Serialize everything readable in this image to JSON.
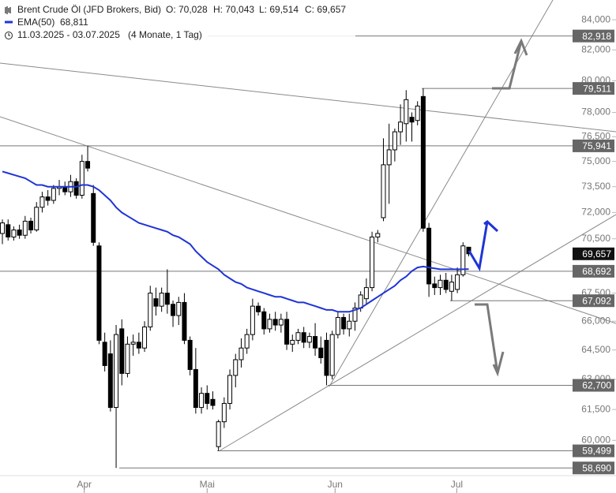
{
  "header": {
    "title": "Brent Crude Öl (JFD Brokers, Bid)",
    "ohlc": [
      "O: 70,028",
      "H: 70,043",
      "L: 69,514",
      "C: 69,657"
    ],
    "range": "11.03.2025 - 03.07.2025",
    "range_note": "(4 Monate, 1 Tag)"
  },
  "chart_data": {
    "type": "candlestick",
    "log_scale": true,
    "xlim": [
      -0.42,
      107.9
    ],
    "ylim": [
      58.33,
      85.34
    ],
    "xticks": [
      {
        "value": 14.4,
        "label": "Apr"
      },
      {
        "value": 36,
        "label": "Mai"
      },
      {
        "value": 58.5,
        "label": "Jun"
      },
      {
        "value": 79.9,
        "label": "Jul"
      }
    ],
    "yticks": [
      {
        "value": 84,
        "label": "84,000"
      },
      {
        "value": 82,
        "label": "82,000"
      },
      {
        "value": 80,
        "label": "80,000"
      },
      {
        "value": 78,
        "label": "78,000"
      },
      {
        "value": 76.5,
        "label": "76,500"
      },
      {
        "value": 75,
        "label": "75,000"
      },
      {
        "value": 73.5,
        "label": "73,500"
      },
      {
        "value": 72,
        "label": "72,000"
      },
      {
        "value": 70.5,
        "label": "70,500"
      },
      {
        "value": 67.5,
        "label": "67,500"
      },
      {
        "value": 66,
        "label": "66,000"
      },
      {
        "value": 64.5,
        "label": "64,500"
      },
      {
        "value": 63,
        "label": "63,000"
      },
      {
        "value": 61.5,
        "label": "61,500"
      },
      {
        "value": 60,
        "label": "60,000"
      }
    ],
    "up_color": "#ffffff",
    "down_color": "#000000",
    "open": [
      70.8,
      71.3,
      70.6,
      71.0,
      70.7,
      71.5,
      71.0,
      72.3,
      72.9,
      72.7,
      73.4,
      73.5,
      73.2,
      73.8,
      73.0,
      75.0,
      73.1,
      70.1,
      64.9,
      64.3,
      61.6,
      65.6,
      63.3,
      64.8,
      64.9,
      64.6,
      65.7,
      67.2,
      66.8,
      67.5,
      66.9,
      66.3,
      67.0,
      65.0,
      63.5,
      61.6,
      62.3,
      62.0,
      59.7,
      60.9,
      61.8,
      63.2,
      64.0,
      64.6,
      65.3,
      66.8,
      66.5,
      65.6,
      66.1,
      65.8,
      66.1,
      64.8,
      65.0,
      65.4,
      64.9,
      65.2,
      64.6,
      65.0,
      63.2,
      65.3,
      66.2,
      65.6,
      66.0,
      66.7,
      67.2,
      67.8,
      70.6,
      71.7,
      74.8,
      75.7,
      76.8,
      77.3,
      77.7,
      77.5,
      79.0,
      71.1,
      68.0,
      67.8,
      68.2,
      67.6,
      67.7,
      68.5,
      70.028
    ],
    "high": [
      71.6,
      71.6,
      71.2,
      71.3,
      71.8,
      71.7,
      72.6,
      73.2,
      73.3,
      73.6,
      73.9,
      73.8,
      74.2,
      74.0,
      75.4,
      75.941,
      73.6,
      70.3,
      65.4,
      65.0,
      65.8,
      66.1,
      65.2,
      65.3,
      65.4,
      66.0,
      67.9,
      67.8,
      67.8,
      68.8,
      67.1,
      67.3,
      67.5,
      65.2,
      64.6,
      62.6,
      62.7,
      62.4,
      61.0,
      62.1,
      63.5,
      64.3,
      65.1,
      65.6,
      67.2,
      67.0,
      66.7,
      66.4,
      66.5,
      66.4,
      66.5,
      65.3,
      65.6,
      65.7,
      65.4,
      65.9,
      65.2,
      65.4,
      65.5,
      66.5,
      66.4,
      66.4,
      67.0,
      67.6,
      68.3,
      70.9,
      71.0,
      76.4,
      77.3,
      77.0,
      78.5,
      79.4,
      78.0,
      78.7,
      79.511,
      71.4,
      68.4,
      68.5,
      68.6,
      68.5,
      68.9,
      70.3,
      70.043
    ],
    "low": [
      70.2,
      70.4,
      70.4,
      70.5,
      70.5,
      70.8,
      70.9,
      72.0,
      72.4,
      72.5,
      73.0,
      73.0,
      72.9,
      72.8,
      72.8,
      74.4,
      70.1,
      64.8,
      63.4,
      61.4,
      58.69,
      62.7,
      63.1,
      64.2,
      64.3,
      64.4,
      65.5,
      66.3,
      66.5,
      66.4,
      65.7,
      65.8,
      64.8,
      63.2,
      61.3,
      61.3,
      61.5,
      61.5,
      59.499,
      60.6,
      61.5,
      62.6,
      63.6,
      64.3,
      65.0,
      66.3,
      65.3,
      65.4,
      65.5,
      65.4,
      64.5,
      64.4,
      64.8,
      64.6,
      64.6,
      64.2,
      63.8,
      62.7,
      63.0,
      65.1,
      65.3,
      65.2,
      65.5,
      66.5,
      66.9,
      67.6,
      70.3,
      71.5,
      72.5,
      75.0,
      76.0,
      76.2,
      76.2,
      77.2,
      70.9,
      67.3,
      67.4,
      67.4,
      67.5,
      67.092,
      67.5,
      68.4,
      69.514
    ],
    "close": [
      71.4,
      70.6,
      71.0,
      70.7,
      71.5,
      71.0,
      72.3,
      72.9,
      72.7,
      73.4,
      73.5,
      73.2,
      73.8,
      73.0,
      75.0,
      74.6,
      70.3,
      65.0,
      63.7,
      61.6,
      65.3,
      63.3,
      64.8,
      64.9,
      64.6,
      65.7,
      67.5,
      66.8,
      67.5,
      66.9,
      66.3,
      67.0,
      65.0,
      63.5,
      61.6,
      62.3,
      61.8,
      61.7,
      60.9,
      61.8,
      63.2,
      64.0,
      64.6,
      65.3,
      66.8,
      66.5,
      65.6,
      66.1,
      65.8,
      66.1,
      64.8,
      65.0,
      65.4,
      64.9,
      65.2,
      64.6,
      64.1,
      63.2,
      65.3,
      66.2,
      65.6,
      66.0,
      66.7,
      67.4,
      67.8,
      70.6,
      70.8,
      74.8,
      75.7,
      76.8,
      77.4,
      78.8,
      77.4,
      78.4,
      71.1,
      68.0,
      67.8,
      68.2,
      67.7,
      68.1,
      68.5,
      70.1,
      69.657
    ],
    "ema": {
      "name": "EMA(50)",
      "value_label": "68,811",
      "color": "#1f34d6",
      "values": [
        74.4,
        74.3,
        74.2,
        74.1,
        74.0,
        73.8,
        73.6,
        73.6,
        73.5,
        73.5,
        73.5,
        73.5,
        73.5,
        73.5,
        73.6,
        73.6,
        73.5,
        73.3,
        73.0,
        72.7,
        72.3,
        72.0,
        71.8,
        71.6,
        71.4,
        71.3,
        71.2,
        71.1,
        71.0,
        70.9,
        70.7,
        70.6,
        70.4,
        70.2,
        69.8,
        69.5,
        69.2,
        69.0,
        68.8,
        68.5,
        68.3,
        68.1,
        68.0,
        67.8,
        67.7,
        67.6,
        67.5,
        67.4,
        67.3,
        67.3,
        67.2,
        67.1,
        67.0,
        67.0,
        66.9,
        66.8,
        66.7,
        66.6,
        66.6,
        66.5,
        66.5,
        66.5,
        66.6,
        66.7,
        66.9,
        67.1,
        67.3,
        67.5,
        67.7,
        67.9,
        68.2,
        68.4,
        68.7,
        68.9,
        68.95,
        68.9,
        68.85,
        68.8,
        68.8,
        68.8,
        68.8,
        68.8,
        68.811
      ]
    },
    "levels": [
      {
        "value": 82.918,
        "label": "82,918"
      },
      {
        "value": 79.511,
        "label": "79,511"
      },
      {
        "value": 75.941,
        "label": "75,941"
      },
      {
        "value": 68.692,
        "label": "68,692"
      },
      {
        "value": 67.092,
        "label": "67,092"
      },
      {
        "value": 62.7,
        "label": "62,700"
      },
      {
        "value": 59.499,
        "label": "59,499"
      },
      {
        "value": 58.69,
        "label": "58,690"
      }
    ],
    "last_price": {
      "value": 69.657,
      "label": "69,657"
    }
  }
}
